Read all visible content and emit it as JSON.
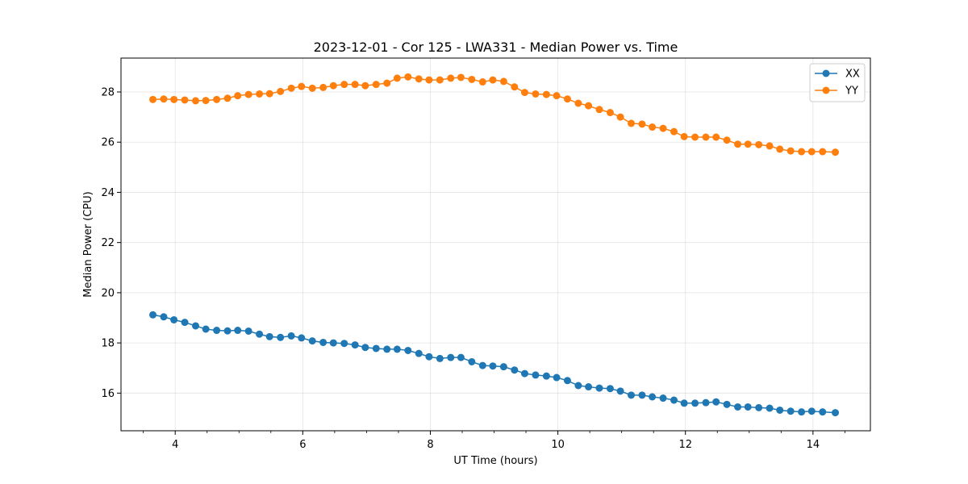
{
  "chart_data": {
    "type": "line",
    "title": "2023-12-01 - Cor 125 - LWA331 - Median Power vs. Time",
    "xlabel": "UT Time (hours)",
    "ylabel": "Median Power (CPU)",
    "xlim": [
      3.15,
      14.9
    ],
    "ylim": [
      14.5,
      29.35
    ],
    "x_ticks": [
      4,
      6,
      8,
      10,
      12,
      14
    ],
    "x_tick_labels": [
      "4",
      "6",
      "8",
      "10",
      "12",
      "14"
    ],
    "y_ticks": [
      16,
      18,
      20,
      22,
      24,
      26,
      28
    ],
    "y_tick_labels": [
      "16",
      "18",
      "20",
      "22",
      "24",
      "26",
      "28"
    ],
    "grid": true,
    "legend_position": "top-right",
    "x": [
      3.65,
      3.82,
      3.98,
      4.15,
      4.32,
      4.48,
      4.65,
      4.82,
      4.98,
      5.15,
      5.32,
      5.48,
      5.65,
      5.82,
      5.98,
      6.15,
      6.32,
      6.48,
      6.65,
      6.82,
      6.98,
      7.15,
      7.32,
      7.48,
      7.65,
      7.82,
      7.98,
      8.15,
      8.32,
      8.48,
      8.65,
      8.82,
      8.98,
      9.15,
      9.32,
      9.48,
      9.65,
      9.82,
      9.98,
      10.15,
      10.32,
      10.48,
      10.65,
      10.82,
      10.98,
      11.15,
      11.32,
      11.48,
      11.65,
      11.82,
      11.98,
      12.15,
      12.32,
      12.48,
      12.65,
      12.82,
      12.98,
      13.15,
      13.32,
      13.48,
      13.65,
      13.82,
      13.98,
      14.15,
      14.35
    ],
    "series": [
      {
        "name": "XX",
        "color": "#1f77b4",
        "values": [
          19.12,
          19.04,
          18.92,
          18.82,
          18.68,
          18.55,
          18.5,
          18.48,
          18.5,
          18.47,
          18.35,
          18.25,
          18.22,
          18.28,
          18.2,
          18.08,
          18.02,
          18.0,
          17.98,
          17.92,
          17.82,
          17.78,
          17.75,
          17.75,
          17.7,
          17.58,
          17.45,
          17.38,
          17.42,
          17.42,
          17.25,
          17.1,
          17.08,
          17.05,
          16.92,
          16.78,
          16.72,
          16.68,
          16.62,
          16.5,
          16.3,
          16.25,
          16.2,
          16.18,
          16.08,
          15.92,
          15.92,
          15.85,
          15.8,
          15.72,
          15.6,
          15.6,
          15.62,
          15.65,
          15.55,
          15.45,
          15.45,
          15.42,
          15.4,
          15.32,
          15.28,
          15.25,
          15.28,
          15.25,
          15.22
        ]
      },
      {
        "name": "YY",
        "color": "#ff7f0e",
        "values": [
          27.7,
          27.72,
          27.7,
          27.68,
          27.65,
          27.66,
          27.7,
          27.75,
          27.85,
          27.9,
          27.92,
          27.93,
          28.02,
          28.15,
          28.22,
          28.15,
          28.18,
          28.25,
          28.3,
          28.3,
          28.25,
          28.3,
          28.35,
          28.55,
          28.6,
          28.52,
          28.48,
          28.48,
          28.55,
          28.58,
          28.5,
          28.4,
          28.48,
          28.42,
          28.2,
          27.98,
          27.92,
          27.9,
          27.85,
          27.72,
          27.55,
          27.45,
          27.3,
          27.18,
          27.0,
          26.75,
          26.72,
          26.6,
          26.55,
          26.42,
          26.22,
          26.2,
          26.2,
          26.2,
          26.08,
          25.92,
          25.92,
          25.9,
          25.85,
          25.72,
          25.65,
          25.62,
          25.62,
          25.62,
          25.6
        ]
      }
    ]
  }
}
